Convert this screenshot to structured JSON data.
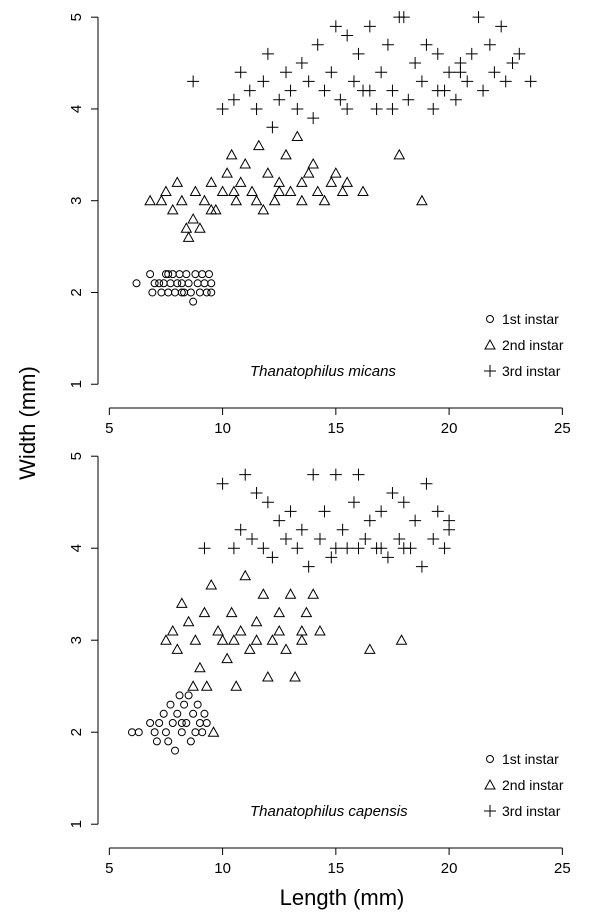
{
  "figure": {
    "xlabel": "Length (mm)",
    "ylabel": "Width (mm)"
  },
  "chart_data": [
    {
      "type": "scatter",
      "annotation": "Thanatophilus micans",
      "xlim": [
        4.5,
        26
      ],
      "ylim": [
        0.85,
        5.1
      ],
      "xticks": [
        5,
        10,
        15,
        20,
        25
      ],
      "yticks": [
        1,
        2,
        3,
        4,
        5
      ],
      "legend": "bottom-right",
      "series": [
        {
          "name": "1st instar",
          "marker": "circle",
          "points": [
            [
              6.2,
              2.1
            ],
            [
              6.8,
              2.2
            ],
            [
              6.9,
              2.0
            ],
            [
              7.0,
              2.1
            ],
            [
              7.2,
              2.1
            ],
            [
              7.3,
              2.0
            ],
            [
              7.4,
              2.1
            ],
            [
              7.5,
              2.2
            ],
            [
              7.6,
              2.0
            ],
            [
              7.7,
              2.1
            ],
            [
              7.8,
              2.2
            ],
            [
              7.9,
              2.0
            ],
            [
              8.0,
              2.1
            ],
            [
              8.1,
              2.2
            ],
            [
              8.2,
              2.1
            ],
            [
              8.3,
              2.0
            ],
            [
              8.4,
              2.2
            ],
            [
              8.5,
              2.1
            ],
            [
              8.6,
              2.0
            ],
            [
              8.7,
              1.9
            ],
            [
              8.8,
              2.2
            ],
            [
              8.9,
              2.1
            ],
            [
              9.0,
              2.0
            ],
            [
              9.1,
              2.2
            ],
            [
              9.2,
              2.1
            ],
            [
              9.3,
              2.0
            ],
            [
              9.4,
              2.2
            ],
            [
              9.5,
              2.1
            ],
            [
              9.5,
              2.0
            ],
            [
              7.6,
              2.2
            ],
            [
              8.2,
              2.0
            ]
          ]
        },
        {
          "name": "2nd instar",
          "marker": "triangle",
          "points": [
            [
              6.8,
              3.0
            ],
            [
              7.3,
              3.0
            ],
            [
              7.5,
              3.1
            ],
            [
              7.8,
              2.9
            ],
            [
              8.0,
              3.2
            ],
            [
              8.2,
              3.0
            ],
            [
              8.4,
              2.7
            ],
            [
              8.5,
              2.6
            ],
            [
              8.7,
              2.8
            ],
            [
              8.8,
              3.1
            ],
            [
              9.0,
              2.7
            ],
            [
              9.2,
              3.0
            ],
            [
              9.5,
              3.2
            ],
            [
              9.7,
              2.9
            ],
            [
              10.0,
              3.1
            ],
            [
              10.2,
              3.3
            ],
            [
              10.4,
              3.5
            ],
            [
              10.6,
              3.0
            ],
            [
              10.8,
              3.2
            ],
            [
              11.0,
              3.4
            ],
            [
              11.3,
              3.1
            ],
            [
              11.6,
              3.6
            ],
            [
              11.8,
              2.9
            ],
            [
              12.0,
              3.3
            ],
            [
              12.3,
              3.0
            ],
            [
              12.5,
              3.2
            ],
            [
              12.8,
              3.5
            ],
            [
              13.0,
              3.1
            ],
            [
              13.3,
              3.7
            ],
            [
              13.5,
              3.0
            ],
            [
              13.8,
              3.3
            ],
            [
              14.0,
              3.4
            ],
            [
              14.2,
              3.1
            ],
            [
              14.5,
              3.0
            ],
            [
              14.8,
              3.2
            ],
            [
              15.0,
              3.3
            ],
            [
              15.3,
              3.1
            ],
            [
              15.5,
              3.2
            ],
            [
              16.2,
              3.1
            ],
            [
              17.8,
              3.5
            ],
            [
              18.8,
              3.0
            ],
            [
              9.5,
              2.9
            ],
            [
              10.5,
              3.1
            ],
            [
              11.5,
              3.0
            ],
            [
              12.5,
              3.1
            ],
            [
              13.5,
              3.2
            ]
          ]
        },
        {
          "name": "3rd instar",
          "marker": "plus",
          "points": [
            [
              8.7,
              4.3
            ],
            [
              10.0,
              4.0
            ],
            [
              10.5,
              4.1
            ],
            [
              10.8,
              4.4
            ],
            [
              11.2,
              4.2
            ],
            [
              11.5,
              4.0
            ],
            [
              11.8,
              4.3
            ],
            [
              12.0,
              4.6
            ],
            [
              12.2,
              3.8
            ],
            [
              12.5,
              4.1
            ],
            [
              12.8,
              4.4
            ],
            [
              13.0,
              4.2
            ],
            [
              13.3,
              4.0
            ],
            [
              13.5,
              4.5
            ],
            [
              13.8,
              4.3
            ],
            [
              14.0,
              3.9
            ],
            [
              14.2,
              4.7
            ],
            [
              14.5,
              4.2
            ],
            [
              14.8,
              4.4
            ],
            [
              15.0,
              4.9
            ],
            [
              15.2,
              4.1
            ],
            [
              15.5,
              4.8
            ],
            [
              15.8,
              4.3
            ],
            [
              16.0,
              4.6
            ],
            [
              16.2,
              4.2
            ],
            [
              16.5,
              4.9
            ],
            [
              16.8,
              4.0
            ],
            [
              17.0,
              4.4
            ],
            [
              17.3,
              4.7
            ],
            [
              17.5,
              4.2
            ],
            [
              17.8,
              5.0
            ],
            [
              18.0,
              5.0
            ],
            [
              18.2,
              4.1
            ],
            [
              18.5,
              4.5
            ],
            [
              18.8,
              4.3
            ],
            [
              19.0,
              4.7
            ],
            [
              19.3,
              4.0
            ],
            [
              19.5,
              4.6
            ],
            [
              19.8,
              4.2
            ],
            [
              20.0,
              4.4
            ],
            [
              20.3,
              4.1
            ],
            [
              20.5,
              4.5
            ],
            [
              20.8,
              4.3
            ],
            [
              21.0,
              4.6
            ],
            [
              21.3,
              5.0
            ],
            [
              21.5,
              4.2
            ],
            [
              21.8,
              4.7
            ],
            [
              22.0,
              4.4
            ],
            [
              22.3,
              4.9
            ],
            [
              22.5,
              4.3
            ],
            [
              22.8,
              4.5
            ],
            [
              23.1,
              4.6
            ],
            [
              23.6,
              4.3
            ],
            [
              15.5,
              4.0
            ],
            [
              16.5,
              4.2
            ],
            [
              17.5,
              4.0
            ],
            [
              19.5,
              4.2
            ],
            [
              20.5,
              4.4
            ]
          ]
        }
      ]
    },
    {
      "type": "scatter",
      "annotation": "Thanatophilus capensis",
      "xlim": [
        4.5,
        26
      ],
      "ylim": [
        0.85,
        5.1
      ],
      "xticks": [
        5,
        10,
        15,
        20,
        25
      ],
      "yticks": [
        1,
        2,
        3,
        4,
        5
      ],
      "legend": "bottom-right",
      "series": [
        {
          "name": "1st instar",
          "marker": "circle",
          "points": [
            [
              6.0,
              2.0
            ],
            [
              6.3,
              2.0
            ],
            [
              6.8,
              2.1
            ],
            [
              7.0,
              2.0
            ],
            [
              7.2,
              2.1
            ],
            [
              7.4,
              2.2
            ],
            [
              7.5,
              2.0
            ],
            [
              7.6,
              1.9
            ],
            [
              7.7,
              2.3
            ],
            [
              7.8,
              2.1
            ],
            [
              7.9,
              1.8
            ],
            [
              8.0,
              2.2
            ],
            [
              8.1,
              2.4
            ],
            [
              8.2,
              2.0
            ],
            [
              8.3,
              2.3
            ],
            [
              8.4,
              2.1
            ],
            [
              8.5,
              2.4
            ],
            [
              8.6,
              1.9
            ],
            [
              8.7,
              2.2
            ],
            [
              8.8,
              2.0
            ],
            [
              8.9,
              2.3
            ],
            [
              9.0,
              2.1
            ],
            [
              9.1,
              2.0
            ],
            [
              9.2,
              2.2
            ],
            [
              9.3,
              2.1
            ],
            [
              7.1,
              1.9
            ],
            [
              8.2,
              2.1
            ]
          ]
        },
        {
          "name": "2nd instar",
          "marker": "triangle",
          "points": [
            [
              7.5,
              3.0
            ],
            [
              7.8,
              3.1
            ],
            [
              8.0,
              2.9
            ],
            [
              8.2,
              3.4
            ],
            [
              8.5,
              3.2
            ],
            [
              8.7,
              2.5
            ],
            [
              8.8,
              3.0
            ],
            [
              9.0,
              2.7
            ],
            [
              9.2,
              3.3
            ],
            [
              9.3,
              2.5
            ],
            [
              9.5,
              3.6
            ],
            [
              9.6,
              2.0
            ],
            [
              9.8,
              3.1
            ],
            [
              10.0,
              3.0
            ],
            [
              10.2,
              2.8
            ],
            [
              10.4,
              3.3
            ],
            [
              10.6,
              2.5
            ],
            [
              10.8,
              3.1
            ],
            [
              11.0,
              3.7
            ],
            [
              11.2,
              2.9
            ],
            [
              11.5,
              3.2
            ],
            [
              11.8,
              3.5
            ],
            [
              12.0,
              2.6
            ],
            [
              12.2,
              3.0
            ],
            [
              12.5,
              3.3
            ],
            [
              12.8,
              2.9
            ],
            [
              13.0,
              3.5
            ],
            [
              13.2,
              2.6
            ],
            [
              13.5,
              3.0
            ],
            [
              13.7,
              3.3
            ],
            [
              14.0,
              3.5
            ],
            [
              14.3,
              3.1
            ],
            [
              16.5,
              2.9
            ],
            [
              17.9,
              3.0
            ],
            [
              10.5,
              3.0
            ],
            [
              11.5,
              3.0
            ],
            [
              12.5,
              3.1
            ],
            [
              13.5,
              3.1
            ]
          ]
        },
        {
          "name": "3rd instar",
          "marker": "plus",
          "points": [
            [
              9.2,
              4.0
            ],
            [
              10.0,
              4.7
            ],
            [
              10.5,
              4.0
            ],
            [
              10.8,
              4.2
            ],
            [
              11.0,
              4.8
            ],
            [
              11.3,
              4.1
            ],
            [
              11.5,
              4.6
            ],
            [
              11.8,
              4.0
            ],
            [
              12.0,
              4.5
            ],
            [
              12.2,
              3.9
            ],
            [
              12.5,
              4.3
            ],
            [
              12.8,
              4.1
            ],
            [
              13.0,
              4.4
            ],
            [
              13.3,
              4.0
            ],
            [
              13.5,
              4.2
            ],
            [
              13.8,
              3.8
            ],
            [
              14.0,
              4.8
            ],
            [
              14.3,
              4.1
            ],
            [
              14.5,
              4.4
            ],
            [
              14.8,
              3.9
            ],
            [
              15.0,
              4.8
            ],
            [
              15.3,
              4.2
            ],
            [
              15.5,
              4.0
            ],
            [
              15.8,
              4.5
            ],
            [
              16.0,
              4.8
            ],
            [
              16.3,
              4.1
            ],
            [
              16.5,
              4.3
            ],
            [
              16.8,
              4.0
            ],
            [
              17.0,
              4.4
            ],
            [
              17.3,
              3.9
            ],
            [
              17.5,
              4.6
            ],
            [
              17.8,
              4.1
            ],
            [
              18.0,
              4.5
            ],
            [
              18.3,
              4.0
            ],
            [
              18.5,
              4.3
            ],
            [
              18.8,
              3.8
            ],
            [
              19.0,
              4.7
            ],
            [
              19.3,
              4.1
            ],
            [
              19.5,
              4.4
            ],
            [
              19.8,
              4.0
            ],
            [
              20.0,
              4.2
            ],
            [
              20.0,
              4.3
            ],
            [
              15.0,
              4.0
            ],
            [
              16.0,
              4.0
            ],
            [
              17.0,
              4.0
            ],
            [
              18.0,
              4.0
            ]
          ]
        }
      ]
    }
  ]
}
